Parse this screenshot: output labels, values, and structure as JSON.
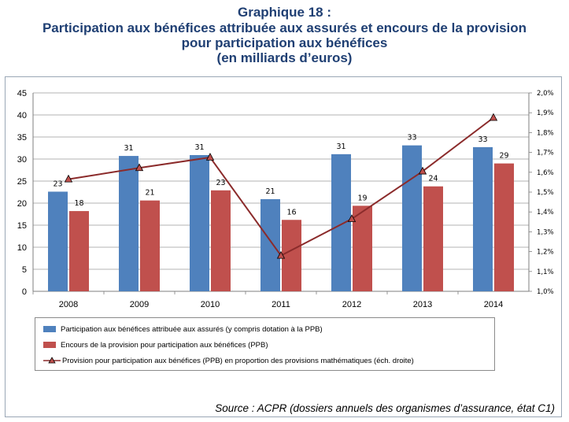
{
  "header": {
    "title_line1": "Graphique 18 :",
    "title_line2": "Participation aux bénéfices attribuée aux assurés et encours de la provision",
    "title_line3": "pour participation aux bénéfices",
    "title_line4": "(en milliards d’euros)"
  },
  "footer": {
    "source": "Source : ACPR (dossiers annuels des organismes d’assurance, état C1)"
  },
  "chart_data": {
    "type": "bar",
    "categories": [
      "2008",
      "2009",
      "2010",
      "2011",
      "2012",
      "2013",
      "2014"
    ],
    "series": [
      {
        "name": "Participation aux bénéfices attribuée aux assurés (y compris dotation à la PPB)",
        "type": "bar",
        "axis": "left",
        "color": "#4f81bd",
        "values": [
          22.6,
          30.7,
          30.9,
          20.9,
          31.1,
          33.1,
          32.7
        ],
        "labels": [
          "23",
          "31",
          "31",
          "21",
          "31",
          "33",
          "33"
        ]
      },
      {
        "name": "Encours de la provision pour participation aux bénéfices (PPB)",
        "type": "bar",
        "axis": "left",
        "color": "#c0504d",
        "values": [
          18.2,
          20.6,
          22.9,
          16.2,
          19.4,
          23.8,
          29.0
        ],
        "labels": [
          "18",
          "21",
          "23",
          "16",
          "19",
          "24",
          "29"
        ]
      },
      {
        "name": "Provision pour participation aux bénéfices (PPB) en proportion des provisions mathématiques (éch. droite)",
        "type": "line",
        "axis": "right",
        "color": "#8b2b2b",
        "values": [
          1.565,
          1.622,
          1.675,
          1.18,
          1.365,
          1.605,
          1.875
        ]
      }
    ],
    "yleft": {
      "min": 0,
      "max": 45,
      "step": 5,
      "ticks": [
        "0",
        "5",
        "10",
        "15",
        "20",
        "25",
        "30",
        "35",
        "40",
        "45"
      ]
    },
    "yright": {
      "min": 1.0,
      "max": 2.0,
      "step": 0.1,
      "ticks": [
        "1,0%",
        "1,1%",
        "1,2%",
        "1,3%",
        "1,4%",
        "1,5%",
        "1,6%",
        "1,7%",
        "1,8%",
        "1,9%",
        "2,0%"
      ]
    },
    "grid": "horizontal",
    "legend_position": "bottom"
  }
}
